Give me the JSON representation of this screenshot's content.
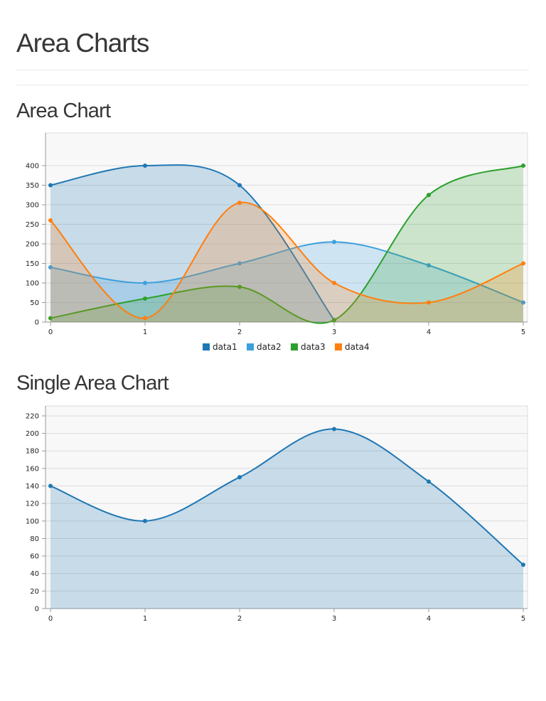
{
  "page": {
    "title": "Area Charts"
  },
  "charts": [
    {
      "heading": "Area Chart",
      "chart_data": {
        "type": "area",
        "title": "Area Chart",
        "x": [
          0,
          1,
          2,
          3,
          4,
          5
        ],
        "xticks": [
          "0",
          "1",
          "2",
          "3",
          "4",
          "5"
        ],
        "yticks": [
          0,
          50,
          100,
          150,
          200,
          250,
          300,
          350,
          400
        ],
        "ylim": [
          0,
          440
        ],
        "grid": true,
        "legend_position": "bottom-center",
        "series": [
          {
            "name": "data1",
            "color": "#1f77b4",
            "values": [
              350,
              400,
              350,
              5,
              null,
              null
            ]
          },
          {
            "name": "data2",
            "color": "#3ea0dd",
            "values": [
              140,
              100,
              150,
              205,
              145,
              50
            ]
          },
          {
            "name": "data3",
            "color": "#2ca02c",
            "values": [
              10,
              60,
              90,
              5,
              325,
              400
            ]
          },
          {
            "name": "data4",
            "color": "#ff7f0e",
            "values": [
              260,
              10,
              305,
              100,
              50,
              150
            ]
          }
        ]
      }
    },
    {
      "heading": "Single Area Chart",
      "chart_data": {
        "type": "area",
        "title": "Single Area Chart",
        "x": [
          0,
          1,
          2,
          3,
          4,
          5
        ],
        "xticks": [
          "0",
          "1",
          "2",
          "3",
          "4",
          "5"
        ],
        "yticks": [
          0,
          20,
          40,
          60,
          80,
          100,
          120,
          140,
          160,
          180,
          200,
          220
        ],
        "ylim": [
          0,
          225
        ],
        "grid": true,
        "series": [
          {
            "name": "",
            "color": "#1f77b4",
            "values": [
              140,
              100,
              150,
              205,
              145,
              50
            ]
          }
        ]
      }
    }
  ]
}
